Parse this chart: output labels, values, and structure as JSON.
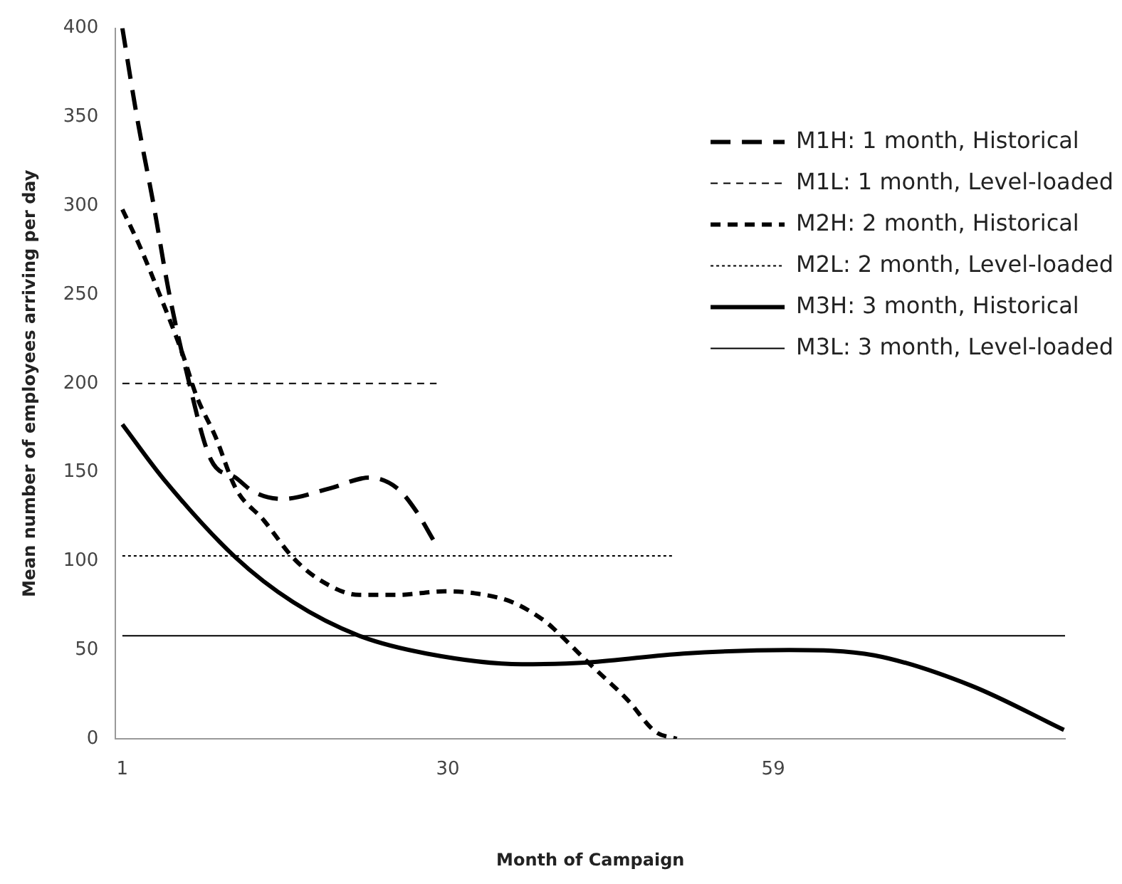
{
  "chart_data": {
    "type": "line",
    "xlabel": "Month of Campaign",
    "ylabel": "Mean number of employees arriving per day",
    "xlim": [
      0.4,
      85
    ],
    "xticks": [
      1,
      30,
      59
    ],
    "ylim": [
      0,
      400
    ],
    "yticks": [
      0,
      50,
      100,
      150,
      200,
      250,
      300,
      350,
      400
    ],
    "grid": false,
    "legend": "top right",
    "marker": "none",
    "series": [
      {
        "name": "M1H: 1 month, Historical",
        "color": "#000000",
        "line_style": "dashed",
        "x": [
          1,
          2.3,
          3.8,
          5.1,
          6.7,
          8.9,
          11.1,
          12.7,
          15.3,
          19.5,
          23,
          25.5,
          27.2,
          28.7
        ],
        "values": [
          400,
          350,
          300,
          253,
          207,
          157,
          147,
          139,
          135,
          141,
          147,
          141,
          128,
          112
        ]
      },
      {
        "name": "M1L: 1 month, Level-loaded",
        "color": "#000000",
        "line_style": "dashed",
        "x": [
          1,
          29
        ],
        "values": [
          200,
          200
        ]
      },
      {
        "name": "M2H: 2 month, Historical",
        "color": "#000000",
        "line_style": "dashed",
        "x": [
          1,
          2.5,
          4.2,
          6.4,
          7.6,
          9.3,
          11.1,
          13.6,
          16.2,
          18.7,
          22.1,
          25.5,
          29.7,
          32.3,
          35.7,
          38.7,
          39.6,
          42.5,
          46,
          48.5,
          50.4
        ],
        "values": [
          298,
          278,
          252,
          216,
          193,
          170,
          141,
          123,
          102,
          89,
          81,
          81,
          83,
          82,
          77,
          66,
          61,
          43,
          22,
          4,
          0
        ]
      },
      {
        "name": "M2L: 2 month, Level-loaded",
        "color": "#000000",
        "line_style": "dotted",
        "x": [
          1,
          50
        ],
        "values": [
          103,
          103
        ]
      },
      {
        "name": "M3H: 3 month, Historical",
        "color": "#000000",
        "line_style": "solid",
        "x": [
          1,
          4.7,
          11.1,
          16.2,
          22.1,
          28.1,
          36.6,
          42.5,
          51,
          60.4,
          68,
          76.6,
          84.9
        ],
        "values": [
          177,
          146,
          102,
          77,
          58,
          48,
          42,
          43,
          48,
          50,
          47,
          30,
          5
        ]
      },
      {
        "name": "M3L: 3 month, Level-loaded",
        "color": "#000000",
        "line_style": "solid",
        "x": [
          1,
          85
        ],
        "values": [
          58,
          58
        ]
      }
    ]
  }
}
